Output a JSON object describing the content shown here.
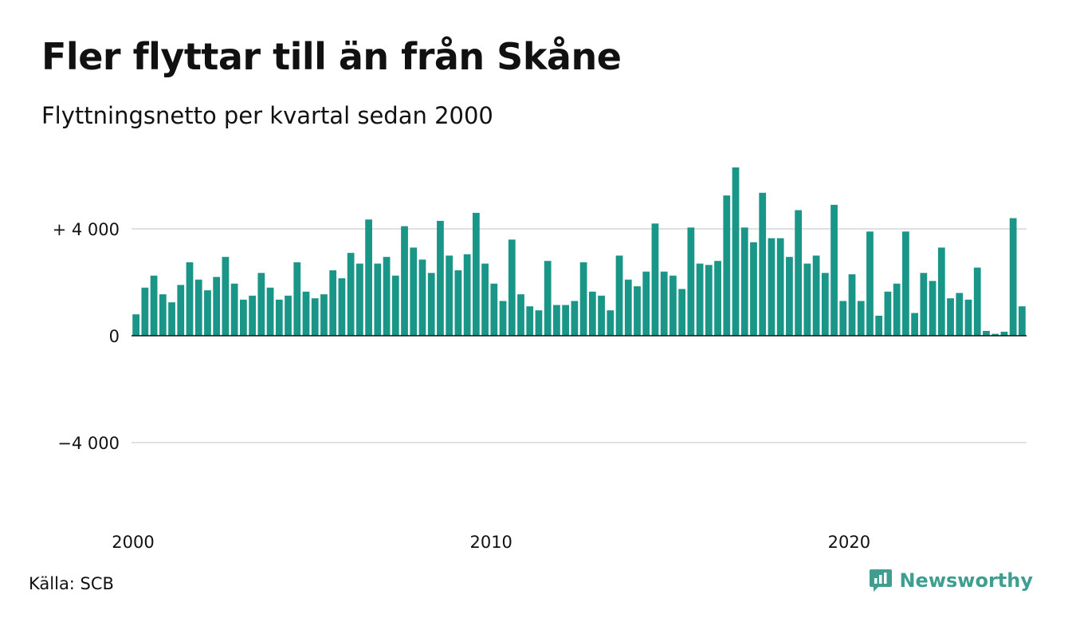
{
  "header": {
    "title": "Fler flyttar till än från Skåne",
    "subtitle": "Flyttningsnetto per kvartal sedan 2000"
  },
  "footer": {
    "source": "Källa: SCB",
    "brand": "Newsworthy",
    "brand_icon": "newsworthy-logo-icon"
  },
  "colors": {
    "bar": "#1a9688",
    "grid": "#e0e0e0",
    "zero_line": "#111111",
    "brand": "#3f9e8f"
  },
  "chart_data": {
    "type": "bar",
    "title": "Fler flyttar till än från Skåne",
    "subtitle": "Flyttningsnetto per kvartal sedan 2000",
    "xlabel": "",
    "ylabel": "",
    "ylim": [
      -6600,
      6600
    ],
    "yticks": [
      {
        "value": 4000,
        "label": "+ 4 000"
      },
      {
        "value": 0,
        "label": "0"
      },
      {
        "value": -4000,
        "label": "−4 000"
      }
    ],
    "xticks": [
      {
        "value": 2000,
        "label": "2000"
      },
      {
        "value": 2010,
        "label": "2010"
      },
      {
        "value": 2020,
        "label": "2020"
      }
    ],
    "grid": true,
    "start_year": 2000,
    "periods_per_year": 4,
    "values": [
      800,
      1800,
      2250,
      1550,
      1250,
      1900,
      2750,
      2100,
      1700,
      2200,
      2950,
      1950,
      1350,
      1500,
      2350,
      1800,
      1350,
      1500,
      2750,
      1650,
      1400,
      1550,
      2450,
      2150,
      3100,
      2700,
      4350,
      2700,
      2950,
      2250,
      4100,
      3300,
      2850,
      2350,
      4300,
      3000,
      2450,
      3050,
      4600,
      2700,
      1950,
      1300,
      3600,
      1550,
      1100,
      950,
      2800,
      1150,
      1150,
      1300,
      2750,
      1650,
      1500,
      950,
      3000,
      2100,
      1850,
      2400,
      4200,
      2400,
      2250,
      1750,
      4050,
      2700,
      2650,
      2800,
      5250,
      6300,
      4050,
      3500,
      5350,
      3650,
      3650,
      2950,
      4700,
      2700,
      3000,
      2350,
      4900,
      1300,
      2300,
      1300,
      3900,
      750,
      1650,
      1950,
      3900,
      850,
      2350,
      2050,
      3300,
      1400,
      1600,
      1350,
      2550,
      180,
      70,
      150,
      4400,
      1100
    ]
  }
}
